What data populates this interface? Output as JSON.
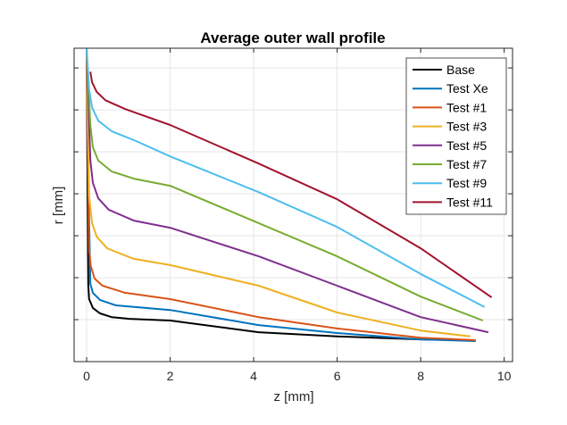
{
  "chart_data": {
    "type": "line",
    "title": "Average outer wall profile",
    "xlabel": "z [mm]",
    "ylabel": "r [mm]",
    "xlim": [
      -0.3,
      10.2
    ],
    "ylim": [
      0,
      7.47
    ],
    "xticks": [
      0,
      2,
      4,
      6,
      8,
      10
    ],
    "xtick_labels": [
      "0",
      "2",
      "4",
      "6",
      "8",
      "10"
    ],
    "yticks": [
      1,
      2,
      3,
      4,
      5,
      6,
      7
    ],
    "ytick_labels": [],
    "grid": true,
    "legend_position": "top-right",
    "series": [
      {
        "name": "Base",
        "color": "#000000",
        "x": [
          0,
          0.02,
          0.04,
          0.06,
          0.15,
          0.32,
          0.6,
          1.03,
          2.0,
          4.12,
          6.0,
          8.0,
          9.1
        ],
        "y": [
          7.47,
          4.36,
          1.81,
          1.49,
          1.28,
          1.15,
          1.06,
          1.02,
          0.98,
          0.7,
          0.6,
          0.53,
          0.51
        ]
      },
      {
        "name": "Test Xe",
        "color": "#0072BD",
        "x": [
          0,
          0.04,
          0.09,
          0.15,
          0.32,
          0.7,
          2.0,
          4.12,
          6.0,
          8.0,
          9.32
        ],
        "y": [
          7.47,
          4.36,
          1.85,
          1.64,
          1.47,
          1.34,
          1.23,
          0.87,
          0.68,
          0.53,
          0.49
        ]
      },
      {
        "name": "Test #1",
        "color": "#D95319",
        "x": [
          0,
          0.06,
          0.1,
          0.19,
          0.38,
          0.92,
          2.0,
          4.12,
          6.0,
          8.0,
          9.32
        ],
        "y": [
          7.47,
          2.66,
          2.28,
          1.98,
          1.81,
          1.64,
          1.49,
          1.06,
          0.79,
          0.57,
          0.51
        ]
      },
      {
        "name": "Test #3",
        "color": "#EDB120",
        "x": [
          0,
          0.06,
          0.13,
          0.24,
          0.49,
          1.13,
          2.0,
          4.12,
          6.0,
          8.0,
          9.19
        ],
        "y": [
          7.47,
          3.94,
          3.3,
          2.98,
          2.7,
          2.45,
          2.3,
          1.81,
          1.17,
          0.74,
          0.6
        ]
      },
      {
        "name": "Test #5",
        "color": "#7E2F8E",
        "x": [
          0,
          0.09,
          0.15,
          0.28,
          0.53,
          1.13,
          2.0,
          4.12,
          6.0,
          8.0,
          9.62
        ],
        "y": [
          7.47,
          4.79,
          4.26,
          3.89,
          3.62,
          3.36,
          3.19,
          2.51,
          1.81,
          1.06,
          0.7
        ]
      },
      {
        "name": "Test #7",
        "color": "#77AC30",
        "x": [
          0,
          0.09,
          0.15,
          0.28,
          0.6,
          1.13,
          2.0,
          4.12,
          6.0,
          8.0,
          9.49
        ],
        "y": [
          7.47,
          5.64,
          5.11,
          4.79,
          4.53,
          4.36,
          4.19,
          3.3,
          2.51,
          1.55,
          0.98
        ]
      },
      {
        "name": "Test #9",
        "color": "#4DBEEE",
        "x": [
          0,
          0.06,
          0.13,
          0.28,
          0.6,
          1.13,
          2.0,
          4.12,
          6.0,
          8.0,
          9.53
        ],
        "y": [
          7.47,
          6.49,
          6.06,
          5.74,
          5.49,
          5.28,
          4.89,
          4.04,
          3.21,
          2.09,
          1.3
        ]
      },
      {
        "name": "Test #11",
        "color": "#A2142F",
        "x": [
          0.09,
          0.13,
          0.24,
          0.45,
          0.92,
          2.0,
          4.12,
          6.0,
          8.0,
          9.7
        ],
        "y": [
          6.91,
          6.66,
          6.43,
          6.23,
          6.02,
          5.64,
          4.72,
          3.87,
          2.7,
          1.53
        ]
      }
    ]
  }
}
